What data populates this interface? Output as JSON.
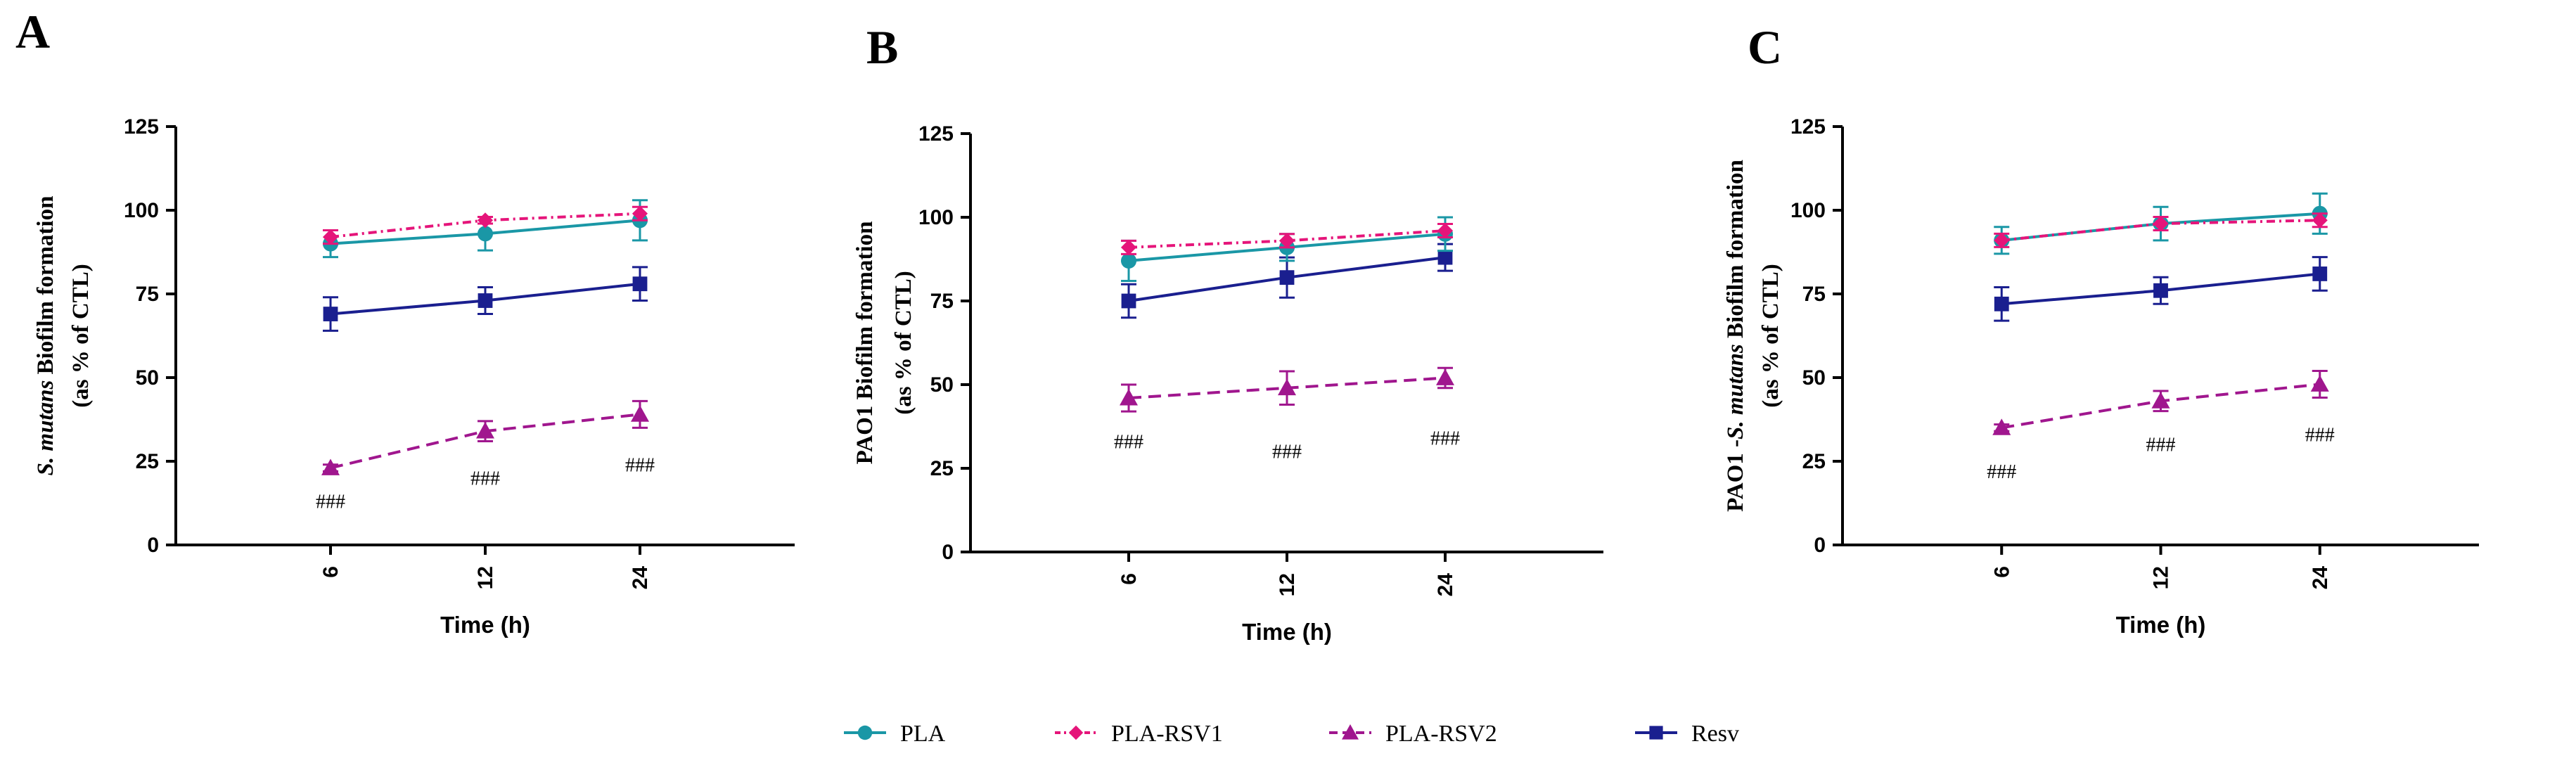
{
  "series_styles": [
    {
      "name": "PLA",
      "color": "#1a97a6",
      "marker": "circle",
      "dash": ""
    },
    {
      "name": "PLA-RSV1",
      "color": "#e5157a",
      "marker": "diamond",
      "dash": "12,6,3,6"
    },
    {
      "name": "PLA-RSV2",
      "color": "#a0168e",
      "marker": "triangle",
      "dash": "18,10"
    },
    {
      "name": "Resv",
      "color": "#1a1f8f",
      "marker": "square",
      "dash": ""
    }
  ],
  "legend": [
    "PLA",
    "PLA-RSV1",
    "PLA-RSV2",
    "Resv"
  ],
  "chart_data": [
    {
      "panel": "A",
      "type": "line",
      "title": "",
      "xlabel": "Time (h)",
      "ylabel_parts": [
        "S. mutans",
        " Biofilm formation"
      ],
      "ylabel_line2": "(as % of CTL)",
      "categories": [
        "6",
        "12",
        "24"
      ],
      "ylim": [
        0,
        125
      ],
      "yticks": [
        "0",
        "25",
        "50",
        "75",
        "100",
        "125"
      ],
      "series": [
        {
          "name": "PLA",
          "values": [
            90,
            93,
            97
          ],
          "errors": [
            4,
            5,
            6
          ]
        },
        {
          "name": "PLA-RSV1",
          "values": [
            92,
            97,
            99
          ],
          "errors": [
            2,
            1,
            2
          ]
        },
        {
          "name": "PLA-RSV2",
          "values": [
            23,
            34,
            39
          ],
          "errors": [
            1,
            3,
            4
          ]
        },
        {
          "name": "Resv",
          "values": [
            69,
            73,
            78
          ],
          "errors": [
            5,
            4,
            5
          ]
        }
      ],
      "annotations": [
        {
          "category": "6",
          "text": "###",
          "y": 11
        },
        {
          "category": "12",
          "text": "###",
          "y": 18
        },
        {
          "category": "24",
          "text": "###",
          "y": 22
        }
      ]
    },
    {
      "panel": "B",
      "type": "line",
      "title": "",
      "xlabel": "Time (h)",
      "ylabel_parts": [
        "PAO1 Biofilm formation"
      ],
      "ylabel_line2": "(as % of CTL)",
      "categories": [
        "6",
        "12",
        "24"
      ],
      "ylim": [
        0,
        125
      ],
      "yticks": [
        "0",
        "25",
        "50",
        "75",
        "100",
        "125"
      ],
      "series": [
        {
          "name": "PLA",
          "values": [
            87,
            91,
            95
          ],
          "errors": [
            6,
            4,
            5
          ]
        },
        {
          "name": "PLA-RSV1",
          "values": [
            91,
            93,
            96
          ],
          "errors": [
            2,
            2,
            2
          ]
        },
        {
          "name": "PLA-RSV2",
          "values": [
            46,
            49,
            52
          ],
          "errors": [
            4,
            5,
            3
          ]
        },
        {
          "name": "Resv",
          "values": [
            75,
            82,
            88
          ],
          "errors": [
            5,
            6,
            4
          ]
        }
      ],
      "annotations": [
        {
          "category": "6",
          "text": "###",
          "y": 31
        },
        {
          "category": "12",
          "text": "###",
          "y": 28
        },
        {
          "category": "24",
          "text": "###",
          "y": 32
        }
      ]
    },
    {
      "panel": "C",
      "type": "line",
      "title": "",
      "xlabel": "Time (h)",
      "ylabel_parts": [
        "PAO1 -",
        "S. mutans",
        " Biofilm formation"
      ],
      "ylabel_line2": "(as % of CTL)",
      "categories": [
        "6",
        "12",
        "24"
      ],
      "ylim": [
        0,
        125
      ],
      "yticks": [
        "0",
        "25",
        "50",
        "75",
        "100",
        "125"
      ],
      "series": [
        {
          "name": "PLA",
          "values": [
            91,
            96,
            99
          ],
          "errors": [
            4,
            5,
            6
          ]
        },
        {
          "name": "PLA-RSV1",
          "values": [
            91,
            96,
            97
          ],
          "errors": [
            2,
            2,
            2
          ]
        },
        {
          "name": "PLA-RSV2",
          "values": [
            35,
            43,
            48
          ],
          "errors": [
            1,
            3,
            4
          ]
        },
        {
          "name": "Resv",
          "values": [
            72,
            76,
            81
          ],
          "errors": [
            5,
            4,
            5
          ]
        }
      ],
      "annotations": [
        {
          "category": "6",
          "text": "###",
          "y": 20
        },
        {
          "category": "12",
          "text": "###",
          "y": 28
        },
        {
          "category": "24",
          "text": "###",
          "y": 31
        }
      ]
    }
  ]
}
